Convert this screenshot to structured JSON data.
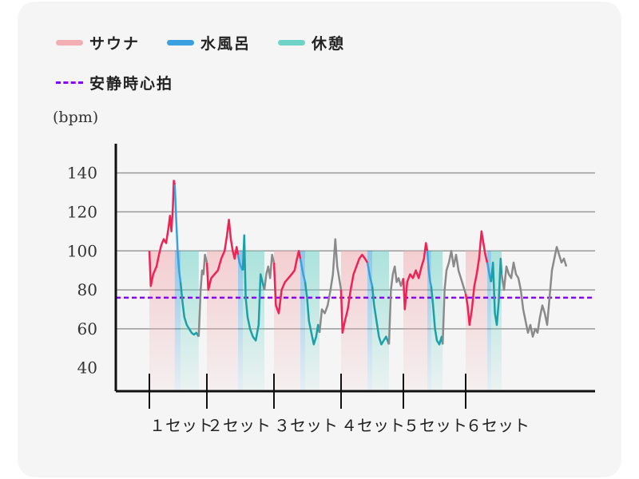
{
  "legend": {
    "sauna": "サウナ",
    "cold_bath": "水風呂",
    "rest": "休憩",
    "resting_hr": "安静時心拍"
  },
  "colors": {
    "sauna": "#f2aeb3",
    "sauna_line": "#ee2255",
    "cold_bath": "#3aa0e0",
    "rest": "#6fd3c8",
    "rest_line": "#1aa0a8",
    "other_line": "#8a8a8a",
    "resting_hr": "#8800ff",
    "grid": "#9a9a9a",
    "axis": "#111111"
  },
  "chart_data": {
    "type": "line",
    "ylabel": "(bpm)",
    "ylim": [
      28,
      155
    ],
    "yticks": [
      40,
      60,
      80,
      100,
      120,
      140
    ],
    "xlim": [
      0,
      100
    ],
    "categories": [
      "１セット",
      "２セット",
      "３セット",
      "４セット",
      "５セット",
      "６セット"
    ],
    "category_x": [
      7,
      19,
      33,
      47,
      60,
      73
    ],
    "resting_hr": 76,
    "segments": [
      {
        "phase": "sauna",
        "x0": 7,
        "x1": 12.3,
        "points": [
          [
            7,
            100
          ],
          [
            7.3,
            82
          ],
          [
            7.8,
            88
          ],
          [
            8.5,
            92
          ],
          [
            9,
            98
          ],
          [
            9.5,
            103
          ],
          [
            10,
            106
          ],
          [
            10.5,
            104
          ],
          [
            11,
            112
          ],
          [
            11.3,
            118
          ],
          [
            11.6,
            110
          ],
          [
            11.9,
            122
          ],
          [
            12.1,
            136
          ],
          [
            12.3,
            134
          ]
        ]
      },
      {
        "phase": "cold_bath",
        "x0": 12.3,
        "x1": 13.5,
        "points": [
          [
            12.3,
            134
          ],
          [
            12.6,
            116
          ],
          [
            12.9,
            100
          ],
          [
            13.2,
            90
          ],
          [
            13.5,
            84
          ]
        ]
      },
      {
        "phase": "rest",
        "x0": 13.5,
        "x1": 17.3,
        "points": [
          [
            13.5,
            84
          ],
          [
            13.9,
            74
          ],
          [
            14.3,
            66
          ],
          [
            14.8,
            62
          ],
          [
            15.3,
            60
          ],
          [
            15.8,
            58
          ],
          [
            16.3,
            57
          ],
          [
            16.8,
            58
          ],
          [
            17.3,
            56
          ]
        ]
      },
      {
        "phase": "other",
        "x0": 17.3,
        "x1": 19,
        "points": [
          [
            17.3,
            56
          ],
          [
            17.7,
            80
          ],
          [
            18,
            90
          ],
          [
            18.3,
            88
          ],
          [
            18.6,
            98
          ],
          [
            19,
            94
          ]
        ]
      },
      {
        "phase": "sauna",
        "x0": 19,
        "x1": 25.5,
        "points": [
          [
            19,
            94
          ],
          [
            19.3,
            80
          ],
          [
            19.9,
            86
          ],
          [
            20.6,
            88
          ],
          [
            21.3,
            90
          ],
          [
            22,
            96
          ],
          [
            22.7,
            100
          ],
          [
            23.2,
            108
          ],
          [
            23.6,
            116
          ],
          [
            24,
            106
          ],
          [
            24.4,
            100
          ],
          [
            24.8,
            96
          ],
          [
            25.2,
            102
          ],
          [
            25.5,
            98
          ]
        ]
      },
      {
        "phase": "cold_bath",
        "x0": 25.5,
        "x1": 26.5,
        "points": [
          [
            25.5,
            98
          ],
          [
            25.8,
            94
          ],
          [
            26.1,
            92
          ],
          [
            26.5,
            90
          ]
        ]
      },
      {
        "phase": "rest",
        "x0": 26.5,
        "x1": 31,
        "points": [
          [
            26.5,
            90
          ],
          [
            26.8,
            108
          ],
          [
            27.1,
            76
          ],
          [
            27.5,
            66
          ],
          [
            28,
            60
          ],
          [
            28.6,
            56
          ],
          [
            29.2,
            54
          ],
          [
            29.8,
            62
          ],
          [
            30.2,
            88
          ],
          [
            30.6,
            84
          ],
          [
            31,
            80
          ]
        ]
      },
      {
        "phase": "other",
        "x0": 31,
        "x1": 33,
        "points": [
          [
            31,
            80
          ],
          [
            31.4,
            88
          ],
          [
            31.8,
            92
          ],
          [
            32.2,
            86
          ],
          [
            32.6,
            98
          ],
          [
            33,
            94
          ]
        ]
      },
      {
        "phase": "sauna",
        "x0": 33,
        "x1": 38.5,
        "points": [
          [
            33,
            94
          ],
          [
            33.4,
            72
          ],
          [
            34,
            68
          ],
          [
            34.6,
            80
          ],
          [
            35.3,
            84
          ],
          [
            36,
            86
          ],
          [
            36.7,
            88
          ],
          [
            37.3,
            90
          ],
          [
            37.8,
            96
          ],
          [
            38.2,
            100
          ],
          [
            38.5,
            96
          ]
        ]
      },
      {
        "phase": "cold_bath",
        "x0": 38.5,
        "x1": 39.5,
        "points": [
          [
            38.5,
            96
          ],
          [
            38.8,
            92
          ],
          [
            39.1,
            88
          ],
          [
            39.5,
            84
          ]
        ]
      },
      {
        "phase": "rest",
        "x0": 39.5,
        "x1": 42.5,
        "points": [
          [
            39.5,
            84
          ],
          [
            39.9,
            76
          ],
          [
            40.3,
            64
          ],
          [
            40.8,
            58
          ],
          [
            41.3,
            52
          ],
          [
            41.8,
            56
          ],
          [
            42.2,
            62
          ],
          [
            42.5,
            58
          ]
        ]
      },
      {
        "phase": "other",
        "x0": 42.5,
        "x1": 47,
        "points": [
          [
            42.5,
            58
          ],
          [
            43,
            70
          ],
          [
            43.6,
            68
          ],
          [
            44.2,
            72
          ],
          [
            44.8,
            80
          ],
          [
            45.3,
            88
          ],
          [
            45.8,
            106
          ],
          [
            46.2,
            92
          ],
          [
            46.6,
            86
          ],
          [
            47,
            80
          ]
        ]
      },
      {
        "phase": "sauna",
        "x0": 47,
        "x1": 52.5,
        "points": [
          [
            47,
            80
          ],
          [
            47.3,
            58
          ],
          [
            47.8,
            64
          ],
          [
            48.4,
            70
          ],
          [
            49,
            80
          ],
          [
            49.6,
            88
          ],
          [
            50.2,
            92
          ],
          [
            50.8,
            96
          ],
          [
            51.4,
            98
          ],
          [
            52,
            96
          ],
          [
            52.5,
            94
          ]
        ]
      },
      {
        "phase": "cold_bath",
        "x0": 52.5,
        "x1": 53.5,
        "points": [
          [
            52.5,
            94
          ],
          [
            52.8,
            90
          ],
          [
            53.1,
            86
          ],
          [
            53.5,
            82
          ]
        ]
      },
      {
        "phase": "rest",
        "x0": 53.5,
        "x1": 57,
        "points": [
          [
            53.5,
            82
          ],
          [
            53.9,
            72
          ],
          [
            54.4,
            64
          ],
          [
            54.9,
            56
          ],
          [
            55.4,
            52
          ],
          [
            55.9,
            54
          ],
          [
            56.4,
            56
          ],
          [
            57,
            52
          ]
        ]
      },
      {
        "phase": "other",
        "x0": 57,
        "x1": 60,
        "points": [
          [
            57,
            52
          ],
          [
            57.4,
            80
          ],
          [
            57.8,
            88
          ],
          [
            58.2,
            92
          ],
          [
            58.6,
            84
          ],
          [
            59,
            86
          ],
          [
            59.5,
            82
          ],
          [
            60,
            86
          ]
        ]
      },
      {
        "phase": "sauna",
        "x0": 60,
        "x1": 65,
        "points": [
          [
            60,
            86
          ],
          [
            60.3,
            70
          ],
          [
            60.8,
            84
          ],
          [
            61.4,
            88
          ],
          [
            62,
            86
          ],
          [
            62.6,
            90
          ],
          [
            63.2,
            86
          ],
          [
            63.8,
            92
          ],
          [
            64.3,
            96
          ],
          [
            64.7,
            104
          ],
          [
            65,
            100
          ]
        ]
      },
      {
        "phase": "cold_bath",
        "x0": 65,
        "x1": 65.8,
        "points": [
          [
            65,
            100
          ],
          [
            65.3,
            90
          ],
          [
            65.6,
            84
          ],
          [
            65.8,
            82
          ]
        ]
      },
      {
        "phase": "rest",
        "x0": 65.8,
        "x1": 68.2,
        "points": [
          [
            65.8,
            82
          ],
          [
            66.2,
            72
          ],
          [
            66.6,
            60
          ],
          [
            67,
            54
          ],
          [
            67.5,
            52
          ],
          [
            68,
            56
          ],
          [
            68.2,
            52
          ]
        ]
      },
      {
        "phase": "other",
        "x0": 68.2,
        "x1": 73,
        "points": [
          [
            68.2,
            52
          ],
          [
            68.6,
            80
          ],
          [
            69,
            90
          ],
          [
            69.5,
            94
          ],
          [
            70,
            100
          ],
          [
            70.5,
            92
          ],
          [
            71,
            98
          ],
          [
            71.5,
            90
          ],
          [
            72,
            86
          ],
          [
            72.5,
            82
          ],
          [
            73,
            78
          ]
        ]
      },
      {
        "phase": "sauna",
        "x0": 73,
        "x1": 77.5,
        "points": [
          [
            73,
            78
          ],
          [
            73.4,
            72
          ],
          [
            73.8,
            62
          ],
          [
            74.3,
            70
          ],
          [
            74.8,
            82
          ],
          [
            75.3,
            88
          ],
          [
            75.8,
            96
          ],
          [
            76.3,
            110
          ],
          [
            76.7,
            104
          ],
          [
            77.1,
            98
          ],
          [
            77.5,
            94
          ]
        ]
      },
      {
        "phase": "cold_bath",
        "x0": 77.5,
        "x1": 78.3,
        "points": [
          [
            77.5,
            94
          ],
          [
            77.8,
            90
          ],
          [
            78.1,
            86
          ],
          [
            78.3,
            84
          ]
        ]
      },
      {
        "phase": "rest",
        "x0": 78.3,
        "x1": 80.5,
        "points": [
          [
            78.3,
            84
          ],
          [
            78.7,
            94
          ],
          [
            79.1,
            68
          ],
          [
            79.5,
            62
          ],
          [
            79.9,
            74
          ],
          [
            80.3,
            96
          ],
          [
            80.5,
            88
          ]
        ]
      },
      {
        "phase": "other",
        "x0": 80.5,
        "x1": 94,
        "points": [
          [
            80.5,
            88
          ],
          [
            81,
            80
          ],
          [
            81.5,
            92
          ],
          [
            82,
            88
          ],
          [
            82.5,
            86
          ],
          [
            83,
            94
          ],
          [
            83.5,
            88
          ],
          [
            84,
            86
          ],
          [
            84.5,
            80
          ],
          [
            85,
            70
          ],
          [
            85.5,
            64
          ],
          [
            86,
            58
          ],
          [
            86.5,
            62
          ],
          [
            87,
            56
          ],
          [
            87.5,
            60
          ],
          [
            88,
            58
          ],
          [
            88.5,
            66
          ],
          [
            89,
            72
          ],
          [
            89.5,
            68
          ],
          [
            90,
            62
          ],
          [
            90.5,
            76
          ],
          [
            91,
            90
          ],
          [
            91.5,
            96
          ],
          [
            92,
            102
          ],
          [
            92.5,
            98
          ],
          [
            93,
            94
          ],
          [
            93.5,
            96
          ],
          [
            94,
            92
          ]
        ]
      }
    ]
  }
}
